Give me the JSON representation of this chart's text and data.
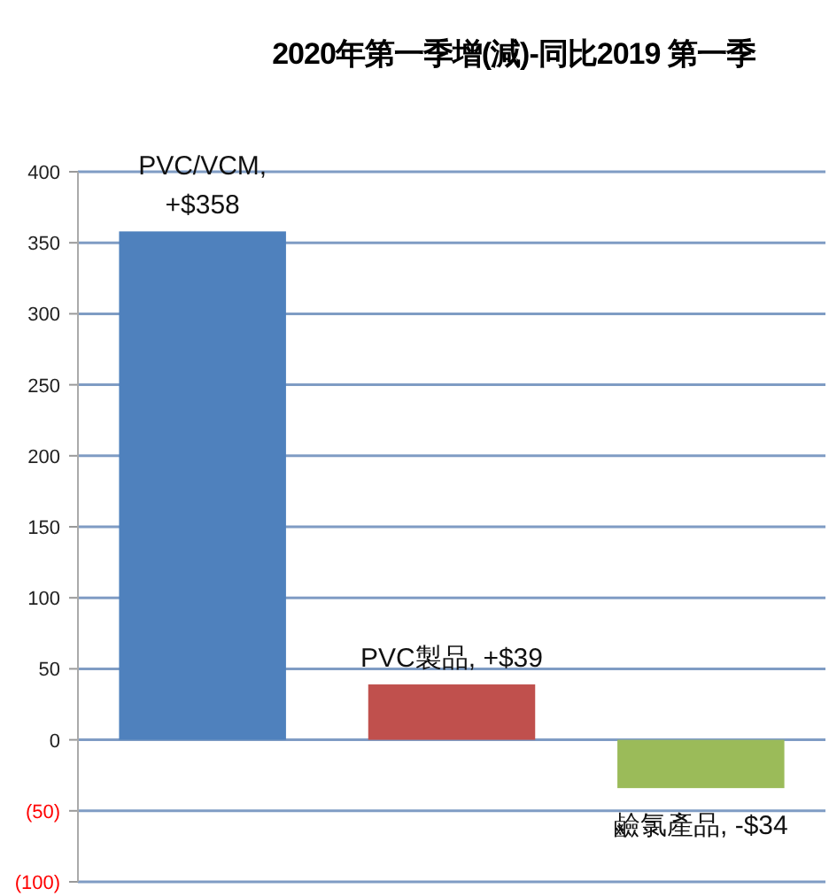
{
  "chart_data": {
    "type": "bar",
    "title": "2020年第一季增(減)-同比2019 第一季",
    "categories": [
      null,
      null,
      null
    ],
    "values": [
      358,
      39,
      -34
    ],
    "colors": [
      "#4f81bd",
      "#c0504d",
      "#9bbb59"
    ],
    "value_labels": [
      "PVC/VCM,\n+$358",
      "PVC製品, +$39",
      "鹼氯產品, -$34"
    ],
    "ylim": [
      -100,
      400
    ],
    "yticks": [
      {
        "value": -100,
        "label": "(100)"
      },
      {
        "value": -50,
        "label": "(50)"
      },
      0,
      50,
      100,
      150,
      200,
      250,
      300,
      350,
      400
    ],
    "grid": "y"
  }
}
